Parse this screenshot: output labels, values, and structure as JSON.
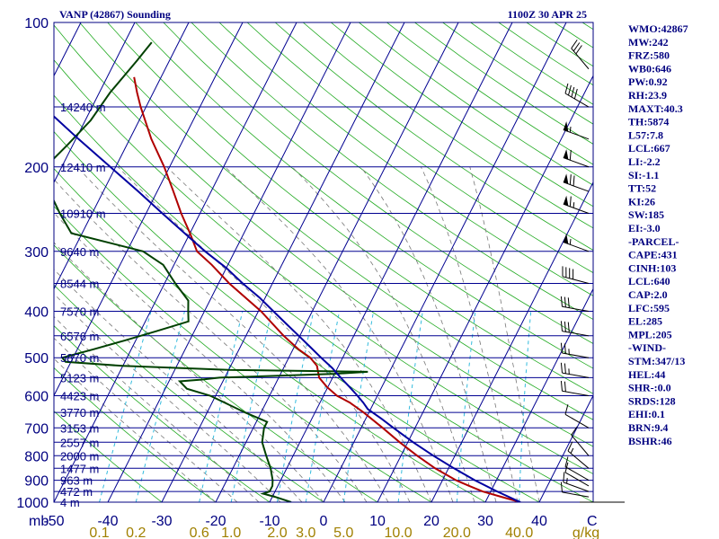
{
  "header": {
    "station": "VANP (42867) Sounding",
    "time": "1100Z 30 APR 25"
  },
  "indices": [
    "WMO:42867",
    "MW:242",
    "FRZ:580",
    "WB0:646",
    "PW:0.92",
    "RH:23.9",
    "MAXT:40.3",
    "TH:5874",
    "L57:7.8",
    "LCL:667",
    "LI:-2.2",
    "SI:-1.1",
    "TT:52",
    "KI:26",
    "SW:185",
    "EI:-3.0",
    "-PARCEL-",
    "CAPE:431",
    "CINH:103",
    "LCL:640",
    "CAP:2.0",
    "LFC:595",
    "EL:285",
    "MPL:205",
    "-WIND-",
    "STM:347/13",
    "HEL:44",
    "SHR-:0.0",
    "SRDS:128",
    "EHI:0.1",
    "BRN:9.4",
    "BSHR:46"
  ],
  "chart_data": {
    "type": "line",
    "title": "VANP (42867) Sounding",
    "subtitle": "1100Z 30 APR 25",
    "x_axis": {
      "unit_label": "C",
      "range": [
        -50,
        50
      ],
      "ticks": [
        "-50",
        "-40",
        "-30",
        "-20",
        "-10",
        "0",
        "10",
        "20",
        "30",
        "40"
      ],
      "skew_per_decade": 45
    },
    "y_axis": {
      "unit_label": "mb",
      "scale": "log",
      "range": [
        1000,
        100
      ],
      "ticks": [
        "100",
        "200",
        "300",
        "400",
        "500",
        "600",
        "700",
        "800",
        "900",
        "1000"
      ]
    },
    "height_labels": [
      {
        "p": 150,
        "label": "14240 m"
      },
      {
        "p": 200,
        "label": "12410 m"
      },
      {
        "p": 250,
        "label": "10910 m"
      },
      {
        "p": 300,
        "label": "9640 m"
      },
      {
        "p": 350,
        "label": "8544 m"
      },
      {
        "p": 400,
        "label": "7570 m"
      },
      {
        "p": 450,
        "label": "6576 m"
      },
      {
        "p": 500,
        "label": "5870 m"
      },
      {
        "p": 550,
        "label": "5123 m"
      },
      {
        "p": 600,
        "label": "4423 m"
      },
      {
        "p": 650,
        "label": "3770 m"
      },
      {
        "p": 700,
        "label": "3153 m"
      },
      {
        "p": 750,
        "label": "2557 m"
      },
      {
        "p": 800,
        "label": "2000 m"
      },
      {
        "p": 850,
        "label": "1477 m"
      },
      {
        "p": 900,
        "label": "963 m"
      },
      {
        "p": 950,
        "label": "472 m"
      },
      {
        "p": 1000,
        "label": "4 m"
      }
    ],
    "mixing_ratio_labels": [
      "0.1",
      "0.2",
      "0.6",
      "1.0",
      "2.0",
      "3.0",
      "5.0",
      "10.0",
      "20.0",
      "40.0",
      "g/kg"
    ],
    "mixing_ratio_values": [
      0.1,
      0.2,
      0.6,
      1.0,
      2.0,
      3.0,
      5.0,
      10.0,
      20.0,
      40.0
    ],
    "series": [
      {
        "role": "temperature",
        "color": "#b00000",
        "points": [
          [
            1000,
            36.5
          ],
          [
            975,
            32.5
          ],
          [
            950,
            28.5
          ],
          [
            925,
            25.5
          ],
          [
            900,
            22.5
          ],
          [
            850,
            17.5
          ],
          [
            800,
            13
          ],
          [
            750,
            8.5
          ],
          [
            700,
            4
          ],
          [
            650,
            -1
          ],
          [
            620,
            -4.5
          ],
          [
            600,
            -7.5
          ],
          [
            575,
            -10.2
          ],
          [
            550,
            -12.5
          ],
          [
            520,
            -14
          ],
          [
            500,
            -16
          ],
          [
            480,
            -19
          ],
          [
            450,
            -23
          ],
          [
            400,
            -29.5
          ],
          [
            350,
            -38
          ],
          [
            320,
            -43
          ],
          [
            300,
            -47
          ],
          [
            275,
            -50
          ],
          [
            250,
            -53.5
          ],
          [
            225,
            -57
          ],
          [
            200,
            -61
          ],
          [
            175,
            -66
          ],
          [
            150,
            -71
          ],
          [
            140,
            -73
          ],
          [
            130,
            -75
          ]
        ]
      },
      {
        "role": "dewpoint",
        "color": "#004000",
        "points": [
          [
            1000,
            -6
          ],
          [
            975,
            -9.5
          ],
          [
            960,
            -12
          ],
          [
            950,
            -11
          ],
          [
            925,
            -11
          ],
          [
            900,
            -11.5
          ],
          [
            850,
            -13
          ],
          [
            800,
            -15
          ],
          [
            750,
            -17
          ],
          [
            700,
            -18
          ],
          [
            680,
            -18
          ],
          [
            650,
            -23
          ],
          [
            600,
            -31
          ],
          [
            580,
            -36
          ],
          [
            560,
            -38
          ],
          [
            555,
            -34
          ],
          [
            550,
            -31
          ],
          [
            540,
            -10
          ],
          [
            535,
            -4
          ],
          [
            530,
            -30
          ],
          [
            520,
            -50
          ],
          [
            510,
            -61
          ],
          [
            500,
            -62
          ],
          [
            480,
            -57
          ],
          [
            460,
            -52
          ],
          [
            440,
            -47
          ],
          [
            420,
            -42
          ],
          [
            400,
            -43
          ],
          [
            380,
            -44
          ],
          [
            350,
            -48
          ],
          [
            320,
            -52
          ],
          [
            300,
            -57
          ],
          [
            275,
            -72
          ],
          [
            250,
            -76
          ],
          [
            225,
            -80
          ],
          [
            200,
            -83
          ],
          [
            180,
            -81
          ],
          [
            160,
            -79
          ],
          [
            140,
            -78
          ],
          [
            120,
            -76
          ],
          [
            110,
            -75
          ]
        ]
      },
      {
        "role": "parcel",
        "color": "#0000a0",
        "points": [
          [
            1000,
            36.5
          ],
          [
            950,
            31.2
          ],
          [
            900,
            26
          ],
          [
            850,
            21
          ],
          [
            800,
            16
          ],
          [
            750,
            11
          ],
          [
            700,
            6
          ],
          [
            670,
            2.9
          ],
          [
            640,
            -0.5
          ],
          [
            620,
            -2
          ],
          [
            600,
            -3.7
          ],
          [
            575,
            -6
          ],
          [
            550,
            -8.5
          ],
          [
            525,
            -11
          ],
          [
            500,
            -14
          ],
          [
            475,
            -17
          ],
          [
            450,
            -20.2
          ],
          [
            425,
            -23.6
          ],
          [
            400,
            -27.2
          ],
          [
            375,
            -31
          ],
          [
            350,
            -35.5
          ],
          [
            325,
            -40
          ],
          [
            300,
            -45.5
          ],
          [
            275,
            -51
          ],
          [
            250,
            -57
          ],
          [
            225,
            -63.5
          ],
          [
            200,
            -71
          ],
          [
            175,
            -79.5
          ],
          [
            150,
            -89
          ],
          [
            130,
            -97
          ],
          [
            120,
            -101
          ]
        ]
      }
    ],
    "wind_barbs": [
      {
        "p": 1000,
        "dir": 0,
        "kt": 0
      },
      {
        "p": 975,
        "dir": 280,
        "kt": 10
      },
      {
        "p": 950,
        "dir": 290,
        "kt": 15
      },
      {
        "p": 925,
        "dir": 300,
        "kt": 10
      },
      {
        "p": 900,
        "dir": 300,
        "kt": 10
      },
      {
        "p": 850,
        "dir": 310,
        "kt": 15
      },
      {
        "p": 800,
        "dir": 320,
        "kt": 10
      },
      {
        "p": 700,
        "dir": 300,
        "kt": 10
      },
      {
        "p": 600,
        "dir": 280,
        "kt": 20
      },
      {
        "p": 550,
        "dir": 280,
        "kt": 25
      },
      {
        "p": 500,
        "dir": 280,
        "kt": 25
      },
      {
        "p": 450,
        "dir": 280,
        "kt": 30
      },
      {
        "p": 400,
        "dir": 280,
        "kt": 30
      },
      {
        "p": 350,
        "dir": 285,
        "kt": 40
      },
      {
        "p": 300,
        "dir": 290,
        "kt": 55
      },
      {
        "p": 250,
        "dir": 290,
        "kt": 65
      },
      {
        "p": 225,
        "dir": 290,
        "kt": 70
      },
      {
        "p": 200,
        "dir": 290,
        "kt": 60
      },
      {
        "p": 175,
        "dir": 290,
        "kt": 55
      },
      {
        "p": 150,
        "dir": 300,
        "kt": 40
      },
      {
        "p": 125,
        "dir": 320,
        "kt": 30
      }
    ]
  }
}
